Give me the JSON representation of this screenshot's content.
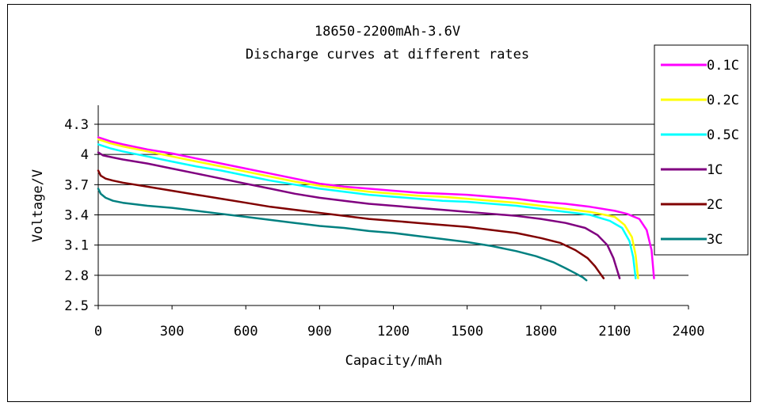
{
  "chart_data": {
    "type": "line",
    "title": "18650-2200mAh-3.6V",
    "subtitle": "Discharge curves at different rates",
    "xlabel": "Capacity/mAh",
    "ylabel": "Voltage/V",
    "xlim": [
      0,
      2400
    ],
    "ylim": [
      2.5,
      4.3
    ],
    "x_ticks": [
      "0",
      "300",
      "600",
      "900",
      "1200",
      "1500",
      "1800",
      "2100",
      "2400"
    ],
    "y_ticks": [
      "2.5",
      "2.8",
      "3.1",
      "3.4",
      "3.7",
      "4",
      "4.3"
    ],
    "grid": "horizontal",
    "legend_position": "right",
    "series": [
      {
        "name": "0.1C",
        "color": "#ff00ff",
        "x": [
          0,
          50,
          100,
          200,
          300,
          400,
          500,
          600,
          700,
          800,
          900,
          1000,
          1100,
          1200,
          1300,
          1400,
          1500,
          1600,
          1700,
          1800,
          1900,
          2000,
          2100,
          2150,
          2200,
          2230,
          2250,
          2260
        ],
        "y": [
          4.17,
          4.13,
          4.1,
          4.05,
          4.01,
          3.96,
          3.91,
          3.86,
          3.81,
          3.76,
          3.71,
          3.68,
          3.66,
          3.64,
          3.62,
          3.61,
          3.6,
          3.58,
          3.56,
          3.53,
          3.51,
          3.48,
          3.44,
          3.41,
          3.36,
          3.25,
          3.05,
          2.77
        ]
      },
      {
        "name": "0.2C",
        "color": "#ffff00",
        "x": [
          0,
          50,
          100,
          200,
          300,
          400,
          500,
          600,
          700,
          800,
          900,
          1000,
          1100,
          1200,
          1300,
          1400,
          1500,
          1600,
          1700,
          1800,
          1900,
          2000,
          2100,
          2140,
          2170,
          2185,
          2195
        ],
        "y": [
          4.15,
          4.11,
          4.08,
          4.03,
          3.98,
          3.93,
          3.88,
          3.83,
          3.78,
          3.73,
          3.69,
          3.66,
          3.63,
          3.61,
          3.59,
          3.58,
          3.56,
          3.54,
          3.52,
          3.49,
          3.46,
          3.43,
          3.38,
          3.3,
          3.18,
          3.0,
          2.77
        ]
      },
      {
        "name": "0.5C",
        "color": "#00ffff",
        "x": [
          0,
          50,
          100,
          200,
          300,
          400,
          500,
          600,
          700,
          800,
          900,
          1000,
          1100,
          1200,
          1300,
          1400,
          1500,
          1600,
          1700,
          1800,
          1900,
          2000,
          2080,
          2130,
          2160,
          2175,
          2185
        ],
        "y": [
          4.1,
          4.06,
          4.03,
          3.98,
          3.93,
          3.88,
          3.84,
          3.79,
          3.74,
          3.7,
          3.66,
          3.63,
          3.6,
          3.58,
          3.56,
          3.54,
          3.53,
          3.51,
          3.49,
          3.46,
          3.43,
          3.4,
          3.34,
          3.27,
          3.14,
          2.98,
          2.77
        ]
      },
      {
        "name": "1C",
        "color": "#800080",
        "x": [
          0,
          20,
          60,
          100,
          200,
          300,
          400,
          500,
          600,
          700,
          800,
          900,
          1000,
          1100,
          1200,
          1300,
          1400,
          1500,
          1600,
          1700,
          1800,
          1900,
          1980,
          2030,
          2070,
          2095,
          2110,
          2120
        ],
        "y": [
          4.02,
          3.99,
          3.97,
          3.95,
          3.91,
          3.86,
          3.81,
          3.76,
          3.71,
          3.66,
          3.61,
          3.57,
          3.54,
          3.51,
          3.49,
          3.47,
          3.45,
          3.43,
          3.41,
          3.39,
          3.36,
          3.32,
          3.27,
          3.2,
          3.1,
          2.97,
          2.85,
          2.77
        ]
      },
      {
        "name": "2C",
        "color": "#800000",
        "x": [
          0,
          10,
          30,
          60,
          100,
          200,
          300,
          400,
          500,
          600,
          700,
          800,
          900,
          1000,
          1100,
          1200,
          1300,
          1400,
          1500,
          1600,
          1700,
          1800,
          1880,
          1940,
          1990,
          2020,
          2040,
          2055
        ],
        "y": [
          3.84,
          3.79,
          3.76,
          3.74,
          3.72,
          3.68,
          3.64,
          3.6,
          3.56,
          3.52,
          3.48,
          3.45,
          3.42,
          3.39,
          3.36,
          3.34,
          3.32,
          3.3,
          3.28,
          3.25,
          3.22,
          3.17,
          3.12,
          3.05,
          2.97,
          2.89,
          2.82,
          2.77
        ]
      },
      {
        "name": "3C",
        "color": "#008080",
        "x": [
          0,
          10,
          30,
          60,
          100,
          200,
          300,
          400,
          500,
          600,
          700,
          800,
          900,
          1000,
          1100,
          1200,
          1300,
          1400,
          1500,
          1600,
          1700,
          1780,
          1850,
          1900,
          1940,
          1970,
          1985
        ],
        "y": [
          3.66,
          3.61,
          3.57,
          3.54,
          3.52,
          3.49,
          3.47,
          3.44,
          3.41,
          3.38,
          3.35,
          3.32,
          3.29,
          3.27,
          3.24,
          3.22,
          3.19,
          3.16,
          3.13,
          3.09,
          3.04,
          2.99,
          2.93,
          2.87,
          2.82,
          2.78,
          2.75
        ]
      }
    ]
  }
}
